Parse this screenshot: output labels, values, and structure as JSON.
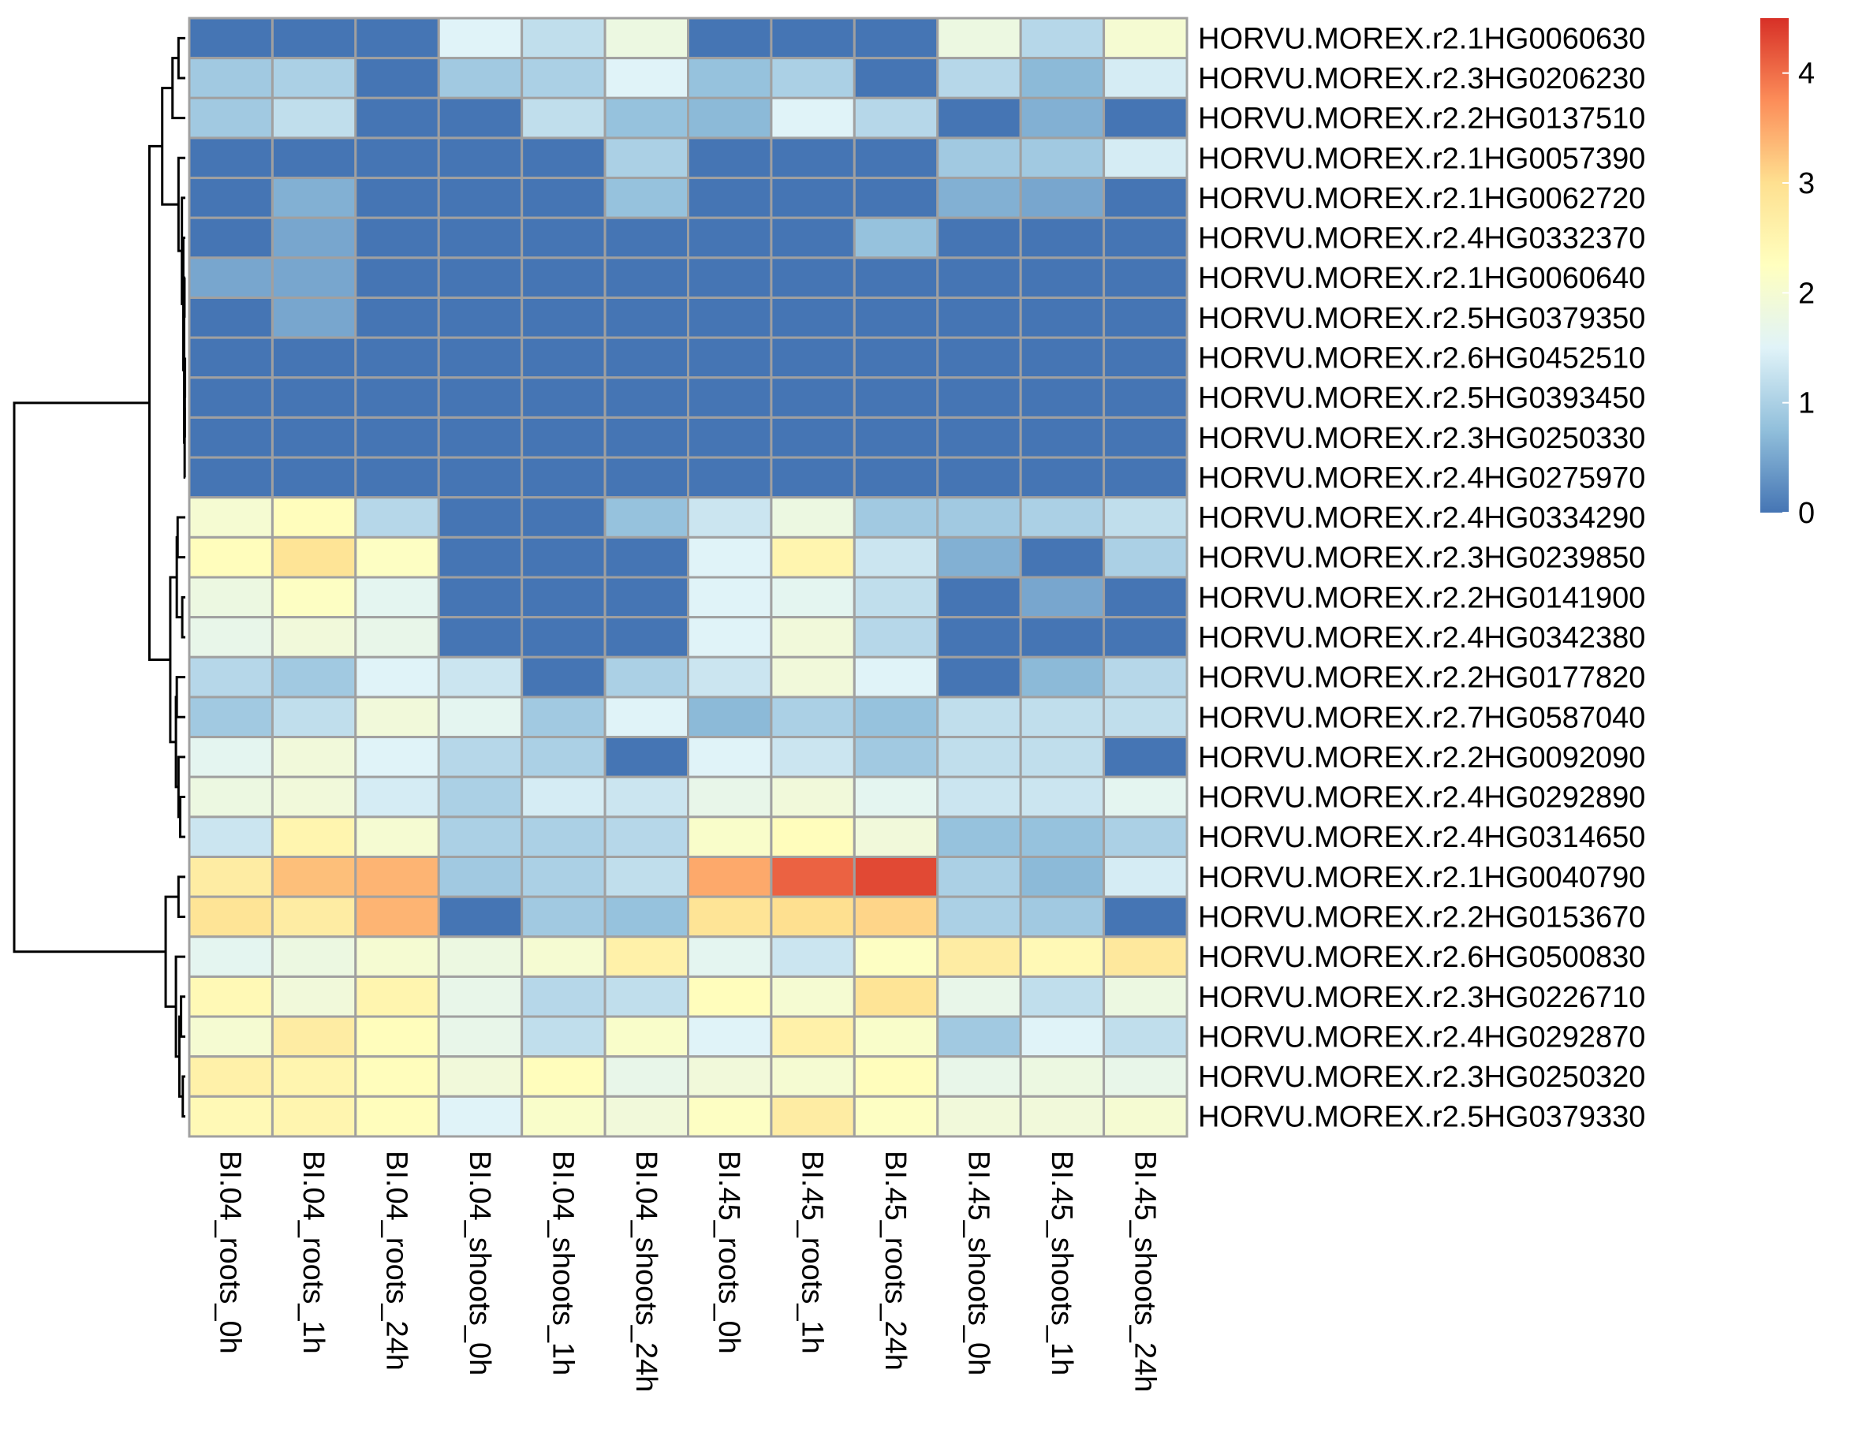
{
  "chart_data": {
    "type": "heatmap",
    "title": "",
    "columns": [
      "BI.04_roots_0h",
      "BI.04_roots_1h",
      "BI.04_roots_24h",
      "BI.04_shoots_0h",
      "BI.04_shoots_1h",
      "BI.04_shoots_24h",
      "BI.45_roots_0h",
      "BI.45_roots_1h",
      "BI.45_roots_24h",
      "BI.45_shoots_0h",
      "BI.45_shoots_1h",
      "BI.45_shoots_24h"
    ],
    "rows": [
      "HORVU.MOREX.r2.1HG0060630",
      "HORVU.MOREX.r2.3HG0206230",
      "HORVU.MOREX.r2.2HG0137510",
      "HORVU.MOREX.r2.1HG0057390",
      "HORVU.MOREX.r2.1HG0062720",
      "HORVU.MOREX.r2.4HG0332370",
      "HORVU.MOREX.r2.1HG0060640",
      "HORVU.MOREX.r2.5HG0379350",
      "HORVU.MOREX.r2.6HG0452510",
      "HORVU.MOREX.r2.5HG0393450",
      "HORVU.MOREX.r2.3HG0250330",
      "HORVU.MOREX.r2.4HG0275970",
      "HORVU.MOREX.r2.4HG0334290",
      "HORVU.MOREX.r2.3HG0239850",
      "HORVU.MOREX.r2.2HG0141900",
      "HORVU.MOREX.r2.4HG0342380",
      "HORVU.MOREX.r2.2HG0177820",
      "HORVU.MOREX.r2.7HG0587040",
      "HORVU.MOREX.r2.2HG0092090",
      "HORVU.MOREX.r2.4HG0292890",
      "HORVU.MOREX.r2.4HG0314650",
      "HORVU.MOREX.r2.1HG0040790",
      "HORVU.MOREX.r2.2HG0153670",
      "HORVU.MOREX.r2.6HG0500830",
      "HORVU.MOREX.r2.3HG0226710",
      "HORVU.MOREX.r2.4HG0292870",
      "HORVU.MOREX.r2.3HG0250320",
      "HORVU.MOREX.r2.5HG0379330"
    ],
    "values": [
      [
        0.0,
        0.0,
        0.0,
        1.5,
        1.2,
        1.8,
        0.0,
        0.0,
        0.0,
        1.8,
        1.1,
        2.0
      ],
      [
        0.9,
        1.0,
        0.0,
        0.9,
        1.0,
        1.5,
        0.8,
        1.0,
        0.0,
        1.1,
        0.7,
        1.4
      ],
      [
        0.9,
        1.2,
        0.0,
        0.0,
        1.2,
        0.8,
        0.7,
        1.5,
        1.1,
        0.0,
        0.6,
        0.0
      ],
      [
        0.0,
        0.0,
        0.0,
        0.0,
        0.0,
        1.0,
        0.0,
        0.0,
        0.0,
        0.9,
        0.9,
        1.4
      ],
      [
        0.0,
        0.6,
        0.0,
        0.0,
        0.0,
        0.8,
        0.0,
        0.0,
        0.0,
        0.6,
        0.5,
        0.0
      ],
      [
        0.0,
        0.5,
        0.0,
        0.0,
        0.0,
        0.0,
        0.0,
        0.0,
        0.8,
        0.0,
        0.0,
        0.0
      ],
      [
        0.5,
        0.5,
        0.0,
        0.0,
        0.0,
        0.0,
        0.0,
        0.0,
        0.0,
        0.0,
        0.0,
        0.0
      ],
      [
        0.0,
        0.5,
        0.0,
        0.0,
        0.0,
        0.0,
        0.0,
        0.0,
        0.0,
        0.0,
        0.0,
        0.0
      ],
      [
        0.0,
        0.0,
        0.0,
        0.0,
        0.0,
        0.0,
        0.0,
        0.0,
        0.0,
        0.0,
        0.0,
        0.0
      ],
      [
        0.0,
        0.0,
        0.0,
        0.0,
        0.0,
        0.0,
        0.0,
        0.0,
        0.0,
        0.0,
        0.0,
        0.0
      ],
      [
        0.0,
        0.0,
        0.0,
        0.0,
        0.0,
        0.0,
        0.0,
        0.0,
        0.0,
        0.0,
        0.0,
        0.0
      ],
      [
        0.0,
        0.0,
        0.0,
        0.0,
        0.0,
        0.0,
        0.0,
        0.0,
        0.0,
        0.0,
        0.0,
        0.0
      ],
      [
        2.0,
        2.3,
        1.1,
        0.0,
        0.0,
        0.8,
        1.3,
        1.8,
        0.9,
        0.9,
        1.0,
        1.2
      ],
      [
        2.3,
        2.9,
        2.2,
        0.0,
        0.0,
        0.0,
        1.5,
        2.5,
        1.3,
        0.6,
        0.0,
        1.0
      ],
      [
        1.8,
        2.2,
        1.6,
        0.0,
        0.0,
        0.0,
        1.5,
        1.6,
        1.2,
        0.0,
        0.5,
        0.0
      ],
      [
        1.7,
        1.9,
        1.7,
        0.0,
        0.0,
        0.0,
        1.5,
        1.9,
        1.1,
        0.0,
        0.0,
        0.0
      ],
      [
        1.1,
        0.9,
        1.5,
        1.3,
        0.0,
        1.0,
        1.3,
        1.9,
        1.5,
        0.0,
        0.7,
        1.1
      ],
      [
        0.9,
        1.2,
        1.9,
        1.6,
        0.9,
        1.5,
        0.7,
        1.0,
        0.8,
        1.2,
        1.2,
        1.2
      ],
      [
        1.6,
        1.9,
        1.5,
        1.1,
        1.0,
        0.0,
        1.5,
        1.3,
        0.9,
        1.2,
        1.2,
        0.0
      ],
      [
        1.8,
        1.9,
        1.4,
        1.0,
        1.4,
        1.3,
        1.7,
        1.9,
        1.6,
        1.3,
        1.3,
        1.6
      ],
      [
        1.3,
        2.5,
        2.0,
        1.0,
        1.0,
        1.1,
        2.1,
        2.3,
        1.9,
        0.8,
        0.8,
        1.0
      ],
      [
        2.7,
        3.3,
        3.4,
        0.9,
        1.0,
        1.2,
        3.5,
        4.1,
        4.3,
        1.0,
        0.7,
        1.4
      ],
      [
        2.9,
        2.7,
        3.4,
        0.0,
        0.9,
        0.8,
        2.9,
        3.0,
        3.1,
        1.0,
        0.9,
        0.0
      ],
      [
        1.6,
        1.8,
        2.0,
        1.8,
        2.0,
        2.6,
        1.6,
        1.3,
        2.2,
        2.7,
        2.4,
        2.8
      ],
      [
        2.4,
        1.9,
        2.5,
        1.7,
        1.1,
        1.2,
        2.3,
        2.0,
        2.9,
        1.7,
        1.2,
        1.8
      ],
      [
        2.0,
        2.7,
        2.3,
        1.7,
        1.2,
        2.1,
        1.5,
        2.6,
        2.1,
        0.9,
        1.5,
        1.2
      ],
      [
        2.6,
        2.5,
        2.3,
        1.9,
        2.3,
        1.7,
        1.9,
        2.0,
        2.3,
        1.7,
        1.8,
        1.7
      ],
      [
        2.4,
        2.5,
        2.3,
        1.5,
        2.1,
        1.9,
        2.2,
        2.7,
        2.2,
        1.9,
        1.9,
        2.0
      ]
    ],
    "color_scale": {
      "min": 0,
      "max": 4.5,
      "colors": [
        "#4575B4",
        "#91BFDB",
        "#E0F3F8",
        "#FFFFBF",
        "#FEE090",
        "#FC8D59",
        "#D73027"
      ],
      "legend_ticks": [
        "0",
        "1",
        "2",
        "3",
        "4"
      ],
      "legend_tick_values": [
        0,
        1,
        2,
        3,
        4
      ]
    },
    "row_dendrogram": true,
    "column_dendrogram": false,
    "cell_border_color": "#A0A0A0",
    "dendrogram_color": "#000000",
    "legend_placement": "right"
  }
}
